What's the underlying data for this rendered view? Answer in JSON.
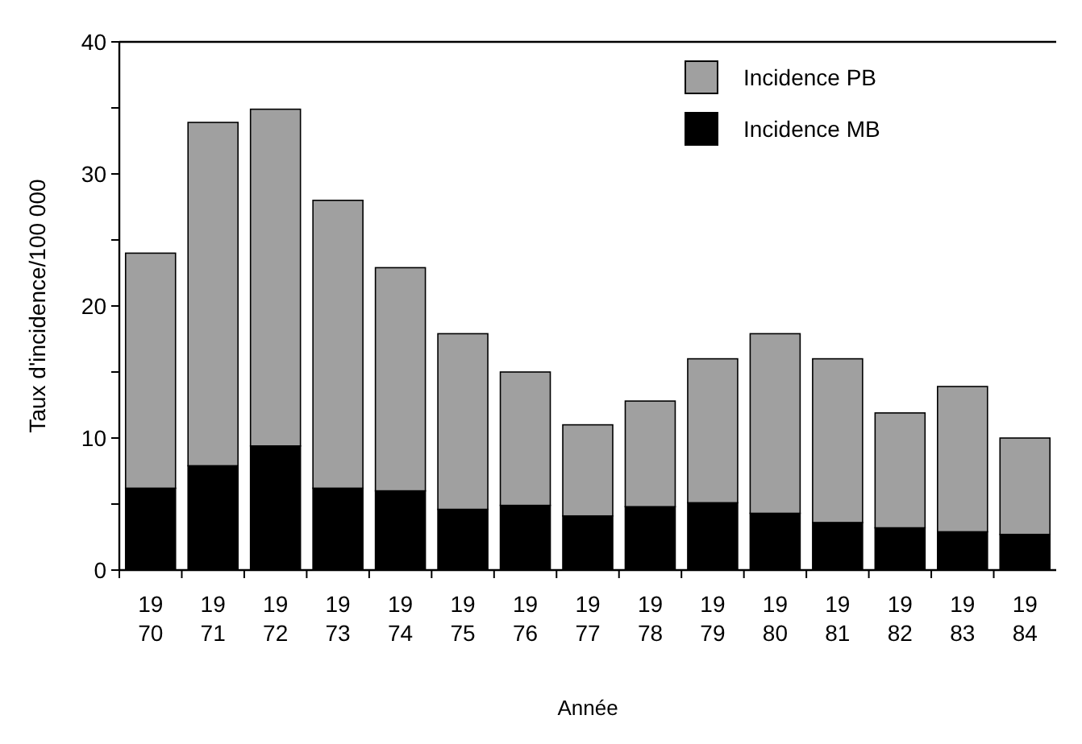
{
  "chart_data": {
    "type": "bar",
    "stacked": true,
    "xlabel": "Année",
    "ylabel": "Taux d'incidence/100 000",
    "categories": [
      "1970",
      "1971",
      "1972",
      "1973",
      "1974",
      "1975",
      "1976",
      "1977",
      "1978",
      "1979",
      "1980",
      "1981",
      "1982",
      "1983",
      "1984"
    ],
    "series": [
      {
        "name": "Incidence MB",
        "color": "#000000",
        "values": [
          6.2,
          7.9,
          9.4,
          6.2,
          6.0,
          4.6,
          4.9,
          4.1,
          4.8,
          5.1,
          4.3,
          3.6,
          3.2,
          2.9,
          2.7
        ]
      },
      {
        "name": "Incidence PB",
        "color": "#a0a0a0",
        "values": [
          17.8,
          26.0,
          25.5,
          21.8,
          16.9,
          13.3,
          10.1,
          6.9,
          8.0,
          10.9,
          13.6,
          12.4,
          8.7,
          11.0,
          7.3
        ]
      }
    ],
    "ylim": [
      0,
      40
    ],
    "yticks": [
      0,
      {
        "value": 5,
        "label": null
      },
      10,
      {
        "value": 15,
        "label": null
      },
      20,
      {
        "value": 25,
        "label": null
      },
      30,
      {
        "value": 35,
        "label": null
      },
      40
    ],
    "legend": "top right",
    "grid": false
  }
}
